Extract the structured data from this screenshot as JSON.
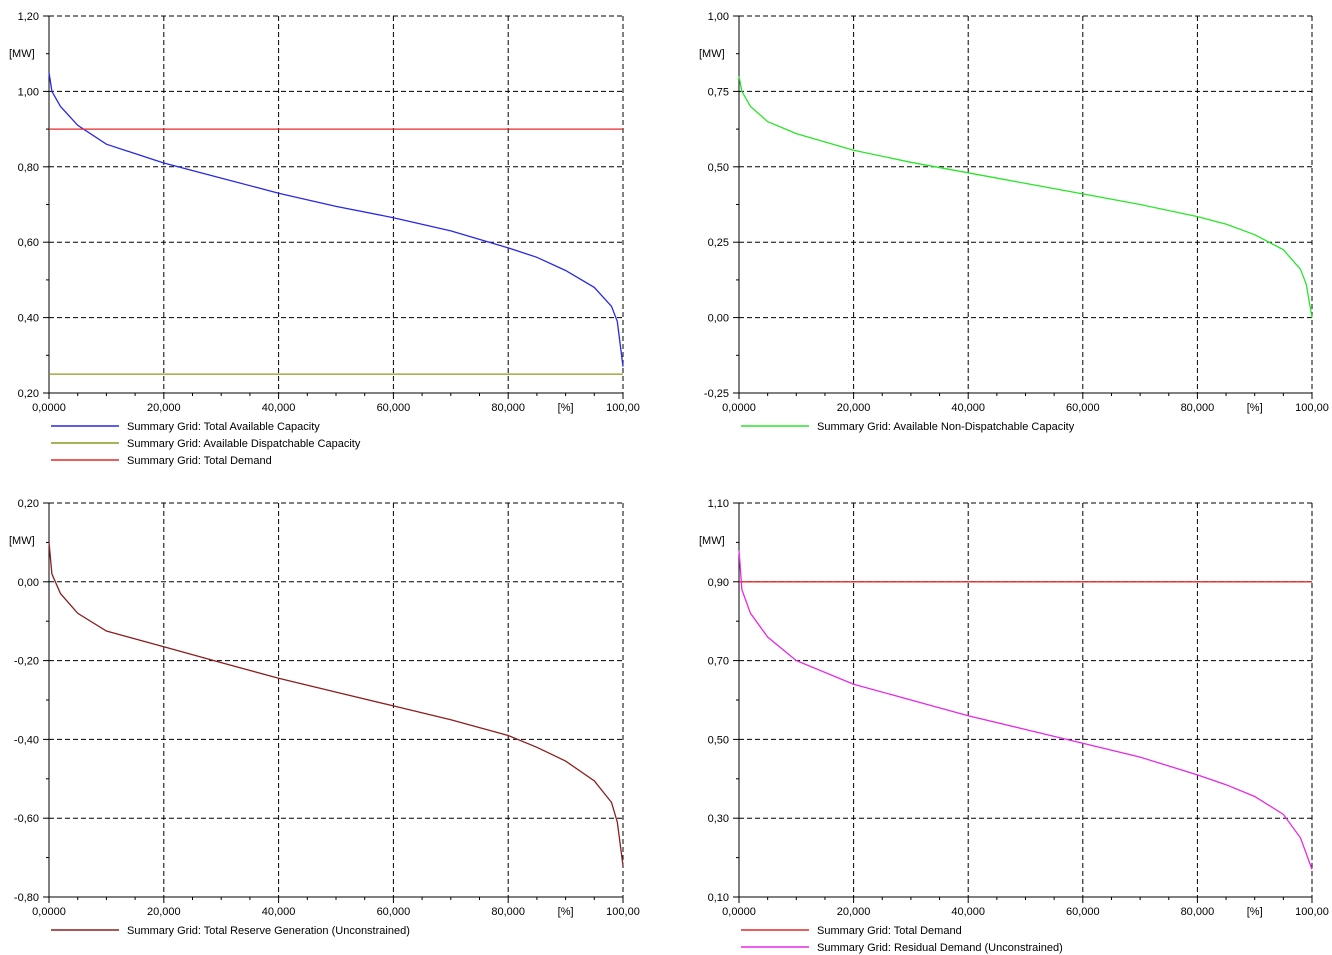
{
  "chart_data": [
    {
      "type": "line",
      "unit_label": "[MW]",
      "x_unit_label": "[%]",
      "xlim": [
        0,
        100
      ],
      "ylim": [
        0.2,
        1.2
      ],
      "x_ticks": [
        "0,0000",
        "20,000",
        "40,000",
        "60,000",
        "80,000",
        "100,00"
      ],
      "y_ticks": [
        "0,20",
        "0,40",
        "0,60",
        "0,80",
        "1,00",
        "1,20"
      ],
      "grid": true,
      "legend_position": "bottom-left",
      "series": [
        {
          "name": "Summary Grid: Total Available Capacity",
          "color": "#2828e6",
          "x": [
            0,
            0.5,
            2,
            5,
            10,
            20,
            30,
            40,
            50,
            60,
            70,
            80,
            85,
            90,
            95,
            98,
            99,
            100
          ],
          "y": [
            1.05,
            1.0,
            0.96,
            0.91,
            0.86,
            0.81,
            0.77,
            0.73,
            0.695,
            0.665,
            0.63,
            0.585,
            0.56,
            0.525,
            0.48,
            0.43,
            0.39,
            0.27
          ]
        },
        {
          "name": "Summary Grid: Available Dispatchable Capacity",
          "color": "#8c9a1e",
          "x": [
            0,
            100
          ],
          "y": [
            0.25,
            0.25
          ]
        },
        {
          "name": "Summary Grid: Total Demand",
          "color": "#e62828",
          "x": [
            0,
            100
          ],
          "y": [
            0.9,
            0.9
          ]
        }
      ]
    },
    {
      "type": "line",
      "unit_label": "[MW]",
      "x_unit_label": "[%]",
      "xlim": [
        0,
        100
      ],
      "ylim": [
        -0.25,
        1.0
      ],
      "x_ticks": [
        "0,0000",
        "20,000",
        "40,000",
        "60,000",
        "80,000",
        "100,00"
      ],
      "y_ticks": [
        "-0,25",
        "0,00",
        "0,25",
        "0,50",
        "0,75",
        "1,00"
      ],
      "grid": true,
      "legend_position": "bottom-left",
      "series": [
        {
          "name": "Summary Grid: Available Non-Dispatchable Capacity",
          "color": "#28e628",
          "x": [
            0,
            0.5,
            2,
            5,
            10,
            20,
            30,
            40,
            50,
            60,
            70,
            80,
            85,
            90,
            95,
            98,
            99,
            100
          ],
          "y": [
            0.8,
            0.75,
            0.7,
            0.65,
            0.61,
            0.555,
            0.515,
            0.48,
            0.445,
            0.41,
            0.375,
            0.335,
            0.31,
            0.275,
            0.225,
            0.16,
            0.11,
            0.0
          ]
        }
      ]
    },
    {
      "type": "line",
      "unit_label": "[MW]",
      "x_unit_label": "[%]",
      "xlim": [
        0,
        100
      ],
      "ylim": [
        -0.8,
        0.2
      ],
      "x_ticks": [
        "0,0000",
        "20,000",
        "40,000",
        "60,000",
        "80,000",
        "100,00"
      ],
      "y_ticks": [
        "-0,80",
        "-0,60",
        "-0,40",
        "-0,20",
        "0,00",
        "0,20"
      ],
      "grid": true,
      "legend_position": "bottom-left",
      "series": [
        {
          "name": "Summary Grid: Total Reserve Generation (Unconstrained)",
          "color": "#8b1e1e",
          "x": [
            0,
            0.5,
            2,
            5,
            10,
            20,
            30,
            40,
            50,
            60,
            70,
            80,
            85,
            90,
            95,
            98,
            99,
            100
          ],
          "y": [
            0.1,
            0.02,
            -0.03,
            -0.08,
            -0.125,
            -0.165,
            -0.205,
            -0.245,
            -0.28,
            -0.315,
            -0.35,
            -0.39,
            -0.42,
            -0.455,
            -0.505,
            -0.56,
            -0.61,
            -0.72
          ]
        }
      ]
    },
    {
      "type": "line",
      "unit_label": "[MW]",
      "x_unit_label": "[%]",
      "xlim": [
        0,
        100
      ],
      "ylim": [
        0.1,
        1.1
      ],
      "x_ticks": [
        "0,0000",
        "20,000",
        "40,000",
        "60,000",
        "80,000",
        "100,00"
      ],
      "y_ticks": [
        "0,10",
        "0,30",
        "0,50",
        "0,70",
        "0,90",
        "1,10"
      ],
      "grid": true,
      "legend_position": "bottom-left",
      "series": [
        {
          "name": "Summary Grid: Total Demand",
          "color": "#e62828",
          "x": [
            0,
            100
          ],
          "y": [
            0.9,
            0.9
          ]
        },
        {
          "name": "Summary Grid: Residual Demand (Unconstrained)",
          "color": "#e628e6",
          "x": [
            0,
            0.5,
            2,
            5,
            10,
            20,
            30,
            40,
            50,
            60,
            70,
            80,
            85,
            90,
            95,
            98,
            99,
            100
          ],
          "y": [
            0.98,
            0.88,
            0.82,
            0.76,
            0.7,
            0.64,
            0.6,
            0.56,
            0.525,
            0.49,
            0.455,
            0.41,
            0.385,
            0.355,
            0.31,
            0.25,
            0.21,
            0.17
          ]
        }
      ]
    }
  ]
}
